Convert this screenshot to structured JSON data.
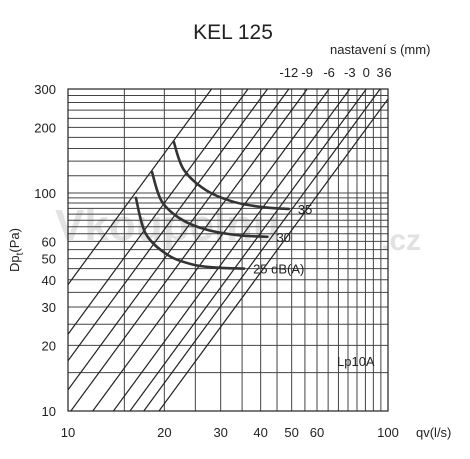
{
  "watermark": {
    "text": "Vkoupelnu",
    "suffix": ".cz"
  },
  "chart_data": {
    "type": "line",
    "title": "KEL 125",
    "xlabel": "qv(l/s)",
    "ylabel_main": "Dp",
    "ylabel_sub": "t",
    "ylabel_unit": "(Pa)",
    "x_scale": "log",
    "y_scale": "log",
    "xlim": [
      10,
      100
    ],
    "ylim": [
      10,
      300
    ],
    "x_tick_labels": [
      {
        "value": 10,
        "label": "10"
      },
      {
        "value": 20,
        "label": "20"
      },
      {
        "value": 30,
        "label": "30"
      },
      {
        "value": 40,
        "label": "40"
      },
      {
        "value": 50,
        "label": "50"
      },
      {
        "value": 60,
        "label": "60"
      },
      {
        "value": 100,
        "label": "100"
      }
    ],
    "y_tick_labels": [
      {
        "value": 10,
        "label": "10"
      },
      {
        "value": 20,
        "label": "20"
      },
      {
        "value": 30,
        "label": "30"
      },
      {
        "value": 40,
        "label": "40"
      },
      {
        "value": 50,
        "label": "50"
      },
      {
        "value": 60,
        "label": "60"
      },
      {
        "value": 100,
        "label": "100"
      },
      {
        "value": 200,
        "label": "200"
      },
      {
        "value": 300,
        "label": "300"
      }
    ],
    "x_grid": [
      10,
      15,
      20,
      25,
      30,
      35,
      40,
      45,
      50,
      55,
      60,
      65,
      70,
      75,
      80,
      85,
      90,
      95,
      100
    ],
    "y_grid": [
      10,
      15,
      20,
      25,
      30,
      35,
      40,
      45,
      50,
      55,
      60,
      65,
      70,
      75,
      80,
      85,
      90,
      95,
      100,
      120,
      140,
      160,
      180,
      200,
      220,
      240,
      260,
      280,
      300
    ],
    "grid": true,
    "top_axis_label": "nastavení s (mm)",
    "settings": [
      {
        "label": "-12",
        "pressure_at_10": 12.5
      },
      {
        "label": "-9",
        "pressure_at_10": 9.6
      },
      {
        "label": "-6",
        "pressure_at_10": 7.0
      },
      {
        "label": "-3",
        "pressure_at_10": 5.2
      },
      {
        "label": "0",
        "pressure_at_10": 4.1
      },
      {
        "label": "3",
        "pressure_at_10": 3.36
      },
      {
        "label": "6",
        "pressure_at_10": 2.7
      }
    ],
    "extra_diagonals": [
      {
        "pressure_at_10": 38
      },
      {
        "pressure_at_10": 22.5
      },
      {
        "pressure_at_10": 17.0
      }
    ],
    "noise_series_label": "Lp10A",
    "noise_curves": [
      {
        "label": "25 dB(A)",
        "points": [
          [
            16.3,
            95
          ],
          [
            17.5,
            65
          ],
          [
            20.5,
            52
          ],
          [
            24.5,
            47
          ],
          [
            29,
            45.5
          ],
          [
            35.5,
            45
          ]
        ]
      },
      {
        "label": "30",
        "points": [
          [
            18.3,
            125
          ],
          [
            19.6,
            92
          ],
          [
            22.5,
            76
          ],
          [
            27,
            68
          ],
          [
            34,
            64
          ],
          [
            42,
            63
          ]
        ]
      },
      {
        "label": "35",
        "points": [
          [
            21.4,
            172
          ],
          [
            23,
            128
          ],
          [
            27,
            103
          ],
          [
            33,
            91
          ],
          [
            41,
            86
          ],
          [
            49,
            84.5
          ]
        ]
      }
    ]
  }
}
